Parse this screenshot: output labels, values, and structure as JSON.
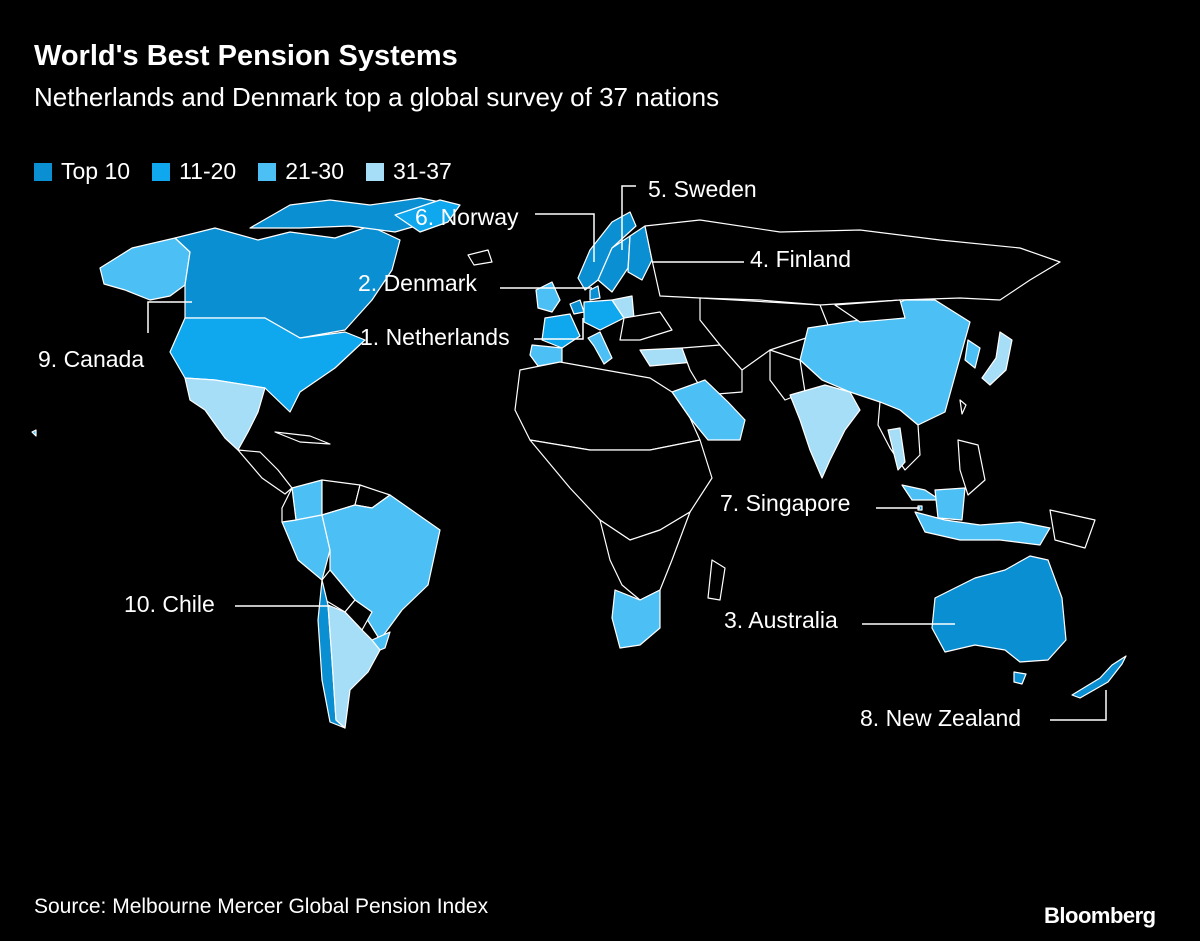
{
  "title": "World's Best Pension Systems",
  "subtitle": "Netherlands and Denmark top a global survey of 37 nations",
  "legend": [
    {
      "label": "Top 10",
      "color": "#0b8fd3"
    },
    {
      "label": "11-20",
      "color": "#0fa8ee"
    },
    {
      "label": "21-30",
      "color": "#4cc0f5"
    },
    {
      "label": "31-37",
      "color": "#a6ddf7"
    }
  ],
  "countries": [
    {
      "name": "Netherlands",
      "rank": 1,
      "tier": "Top 10"
    },
    {
      "name": "Denmark",
      "rank": 2,
      "tier": "Top 10"
    },
    {
      "name": "Australia",
      "rank": 3,
      "tier": "Top 10"
    },
    {
      "name": "Finland",
      "rank": 4,
      "tier": "Top 10"
    },
    {
      "name": "Sweden",
      "rank": 5,
      "tier": "Top 10"
    },
    {
      "name": "Norway",
      "rank": 6,
      "tier": "Top 10"
    },
    {
      "name": "Singapore",
      "rank": 7,
      "tier": "Top 10"
    },
    {
      "name": "New Zealand",
      "rank": 8,
      "tier": "Top 10"
    },
    {
      "name": "Canada",
      "rank": 9,
      "tier": "Top 10"
    },
    {
      "name": "Chile",
      "rank": 10,
      "tier": "Top 10"
    }
  ],
  "labels": {
    "sweden": "5. Sweden",
    "norway": "6. Norway",
    "finland": "4. Finland",
    "denmark": "2. Denmark",
    "netherlands": "1. Netherlands",
    "canada": "9. Canada",
    "singapore": "7. Singapore",
    "chile": "10. Chile",
    "australia": "3. Australia",
    "new_zealand": "8. New Zealand"
  },
  "source": "Source: Melbourne Mercer Global Pension Index",
  "brand": "Bloomberg"
}
